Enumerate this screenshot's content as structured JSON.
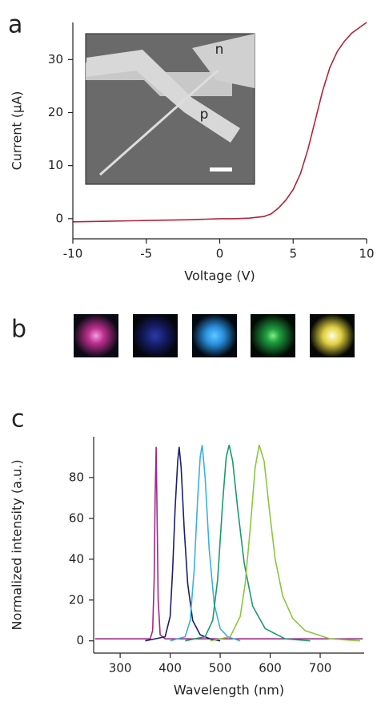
{
  "chart_data": [
    {
      "type": "line",
      "panel": "a",
      "xlabel": "Voltage (V)",
      "ylabel": "Current (µA)",
      "inset_labels": [
        "n",
        "p"
      ],
      "xlim": [
        -10,
        10
      ],
      "ylim": [
        -3.8,
        37
      ],
      "xticks": [
        -10,
        -5,
        0,
        5,
        10
      ],
      "yticks": [
        0,
        10,
        20,
        30
      ],
      "series": [
        {
          "color": "#b3243a",
          "x": [
            -10,
            -8,
            -6,
            -4,
            -2,
            0,
            1,
            2,
            3,
            3.5,
            4,
            4.5,
            5,
            5.5,
            6,
            6.5,
            7,
            7.5,
            8,
            8.5,
            9,
            9.5,
            10
          ],
          "values": [
            -0.6,
            -0.5,
            -0.4,
            -0.3,
            -0.2,
            0,
            0,
            0.1,
            0.4,
            0.9,
            2,
            3.5,
            5.5,
            8.5,
            13,
            18.5,
            24,
            28.5,
            31.5,
            33.5,
            35,
            36,
            37
          ]
        }
      ]
    },
    {
      "type": "line",
      "panel": "c",
      "xlabel": "Wavelength (nm)",
      "ylabel": "Normalized intensity (a.u.)",
      "xlim": [
        247,
        788
      ],
      "ylim": [
        -6,
        100
      ],
      "xticks": [
        300,
        400,
        500,
        600,
        700
      ],
      "yticks": [
        0,
        20,
        40,
        60,
        80
      ],
      "series": [
        {
          "color": "#a0288c",
          "x": [
            250,
            360,
            365,
            368,
            370,
            372,
            374,
            376,
            380,
            390,
            785
          ],
          "values": [
            1,
            1,
            5,
            30,
            70,
            95,
            60,
            20,
            3,
            1,
            1
          ]
        },
        {
          "color": "#1a1f6e",
          "x": [
            350,
            390,
            400,
            405,
            410,
            415,
            418,
            422,
            428,
            435,
            445,
            460,
            480,
            500
          ],
          "values": [
            0,
            2,
            12,
            35,
            65,
            88,
            95,
            85,
            55,
            28,
            10,
            3,
            1,
            0
          ]
        },
        {
          "color": "#3ab0e0",
          "x": [
            400,
            430,
            440,
            448,
            455,
            460,
            464,
            470,
            478,
            488,
            500,
            515,
            540
          ],
          "values": [
            0,
            2,
            10,
            35,
            70,
            90,
            96,
            80,
            45,
            18,
            6,
            2,
            0
          ]
        },
        {
          "color": "#1a9a6a",
          "x": [
            430,
            470,
            485,
            495,
            505,
            512,
            518,
            525,
            535,
            548,
            565,
            590,
            630,
            680
          ],
          "values": [
            0,
            2,
            10,
            30,
            68,
            90,
            96,
            88,
            65,
            38,
            17,
            6,
            1,
            0
          ]
        },
        {
          "color": "#8cc63f",
          "x": [
            480,
            520,
            540,
            550,
            560,
            570,
            578,
            588,
            598,
            610,
            625,
            645,
            670,
            720,
            780
          ],
          "values": [
            0,
            2,
            12,
            28,
            55,
            85,
            96,
            88,
            65,
            40,
            22,
            11,
            5,
            1,
            0
          ]
        }
      ]
    }
  ],
  "figure_b": {
    "panel": "b"
  }
}
